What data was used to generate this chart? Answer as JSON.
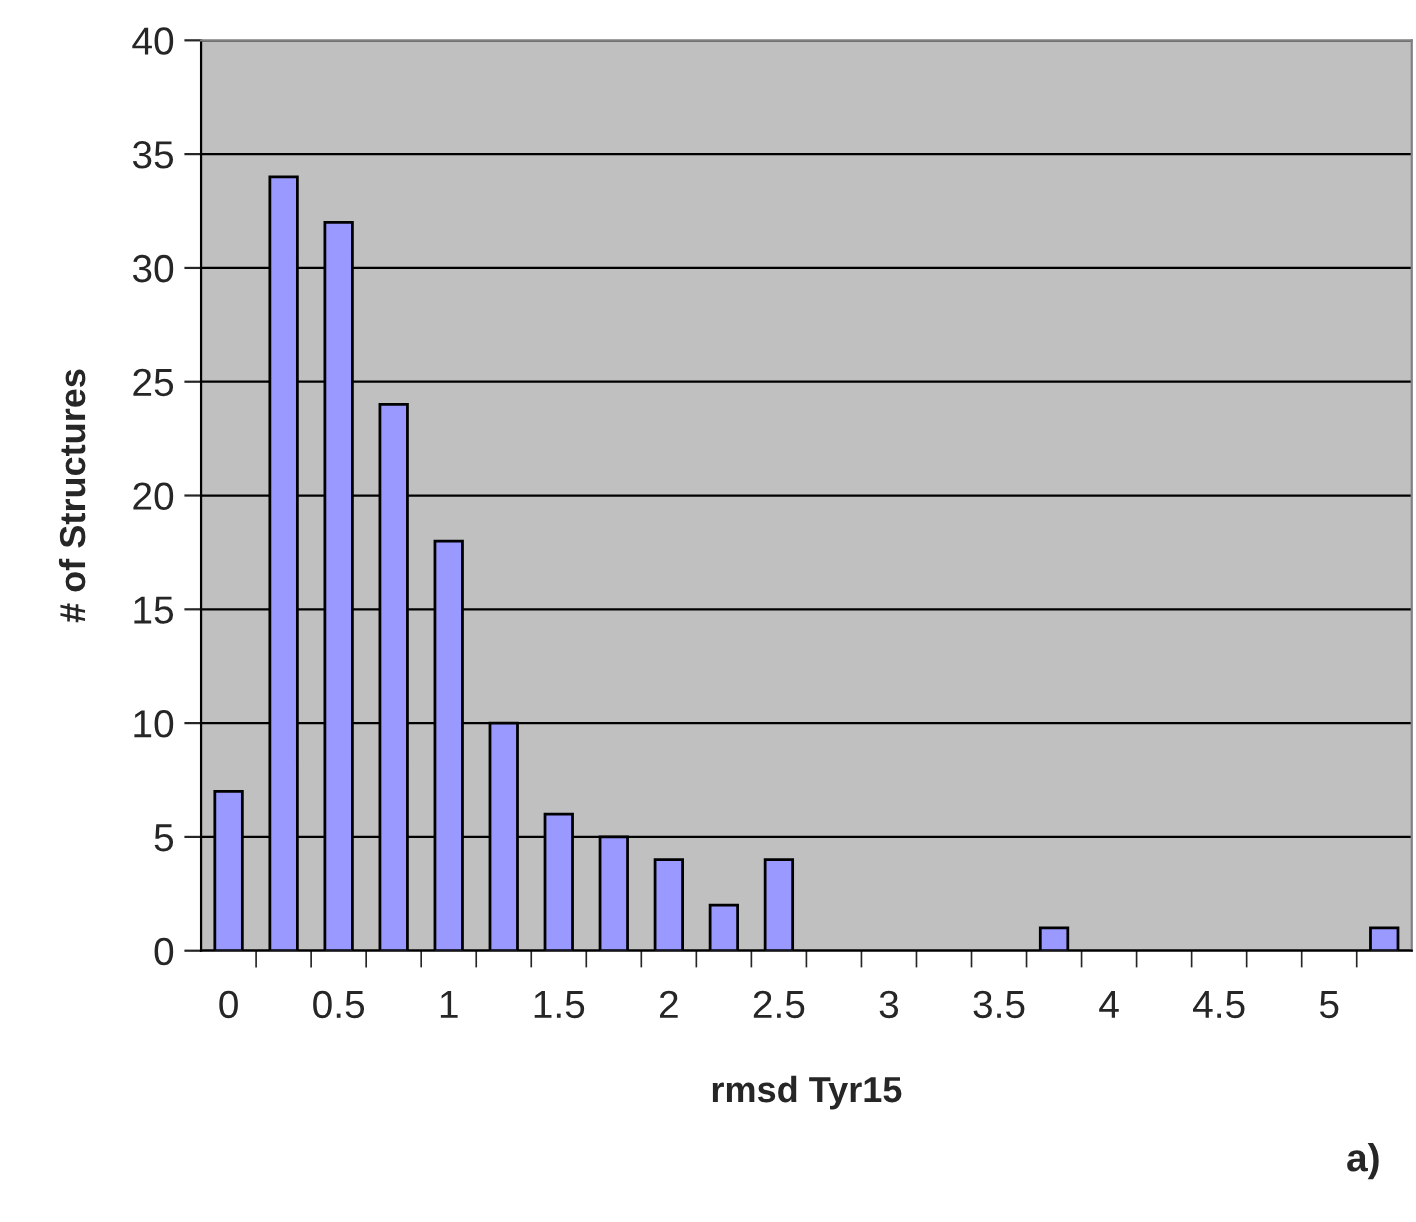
{
  "chart_data": {
    "type": "bar",
    "xlabel": "rmsd Tyr15",
    "ylabel": "# of Structures",
    "categories": [
      "0",
      null,
      "0.5",
      null,
      "1",
      null,
      "1.5",
      null,
      "2",
      null,
      "2.5",
      null,
      "3",
      null,
      "3.5",
      null,
      "4",
      null,
      "4.5",
      null,
      "5",
      null
    ],
    "values": [
      7,
      34,
      32,
      24,
      18,
      10,
      6,
      5,
      4,
      2,
      4,
      0,
      0,
      0,
      0,
      1,
      0,
      0,
      0,
      0,
      0,
      1
    ],
    "color": "#9999ff",
    "ylim": [
      0,
      40
    ],
    "yticks": [
      0,
      5,
      10,
      15,
      20,
      25,
      30,
      35,
      40
    ],
    "grid": "y",
    "annotations": [
      "a)"
    ]
  }
}
